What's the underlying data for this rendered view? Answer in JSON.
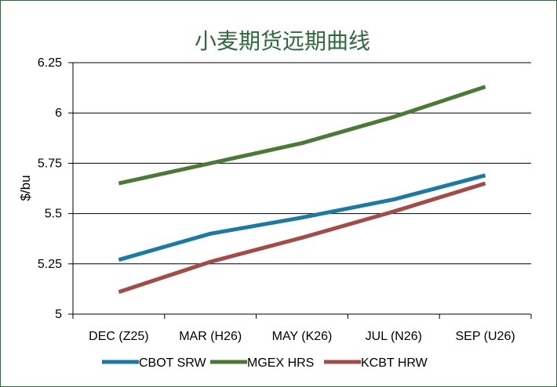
{
  "chart_data": {
    "type": "line",
    "title": "小麦期货远期曲线",
    "xlabel": "",
    "ylabel": "$/bu",
    "categories": [
      "DEC (Z25)",
      "MAR (H26)",
      "MAY (K26)",
      "JUL (N26)",
      "SEP (U26)"
    ],
    "ylim": [
      5,
      6.25
    ],
    "yticks": [
      "5",
      "5.25",
      "5.5",
      "5.75",
      "6",
      "6.25"
    ],
    "grid": "horizontal",
    "legend_position": "bottom",
    "series": [
      {
        "name": "CBOT SRW",
        "color": "#1a7aa6",
        "values": [
          5.27,
          5.4,
          5.48,
          5.57,
          5.69
        ]
      },
      {
        "name": "MGEX HRS",
        "color": "#4b7a37",
        "values": [
          5.65,
          5.75,
          5.85,
          5.98,
          6.13
        ]
      },
      {
        "name": "KCBT HRW",
        "color": "#a54a47",
        "values": [
          5.11,
          5.26,
          5.38,
          5.51,
          5.65
        ]
      }
    ]
  }
}
